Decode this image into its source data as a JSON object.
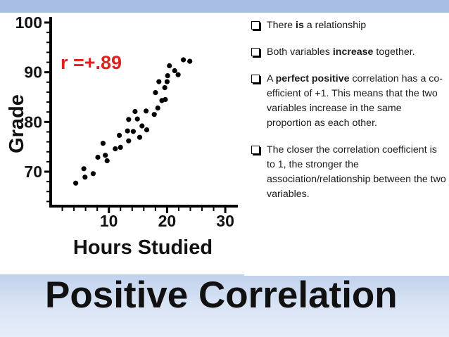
{
  "slide_title": "Positive Correlation",
  "colors": {
    "band": "#a8bfe3",
    "annotation": "#e02020"
  },
  "bullets": [
    {
      "parts": [
        {
          "text": "There ",
          "bold": false
        },
        {
          "text": "is",
          "bold": true
        },
        {
          "text": " a relationship",
          "bold": false
        }
      ]
    },
    {
      "parts": [
        {
          "text": "Both variables ",
          "bold": false
        },
        {
          "text": "increase",
          "bold": true
        },
        {
          "text": " together.",
          "bold": false
        }
      ]
    },
    {
      "parts": [
        {
          "text": "A ",
          "bold": false
        },
        {
          "text": "perfect positive",
          "bold": true
        },
        {
          "text": " correlation has a co-efficient of +1. This means that the two variables increase in the same proportion as each other.",
          "bold": false
        }
      ]
    },
    {
      "parts": [
        {
          "text": "The closer the correlation coefficient is to 1, the stronger the association/relationship between the two variables.",
          "bold": false
        }
      ]
    }
  ],
  "chart_data": {
    "type": "scatter",
    "title": "",
    "xlabel": "Hours Studied",
    "ylabel": "Grade",
    "annotation": "r =+.89",
    "xlim": [
      0,
      30
    ],
    "ylim": [
      63,
      100
    ],
    "xticks": [
      10,
      20,
      30
    ],
    "yticks": [
      70,
      80,
      90,
      100
    ],
    "grid": false,
    "series": [
      {
        "points": [
          [
            4.3,
            67.7
          ],
          [
            5.7,
            70.6
          ],
          [
            5.9,
            68.9
          ],
          [
            7.3,
            69.6
          ],
          [
            8.1,
            72.9
          ],
          [
            9.0,
            75.7
          ],
          [
            9.4,
            73.3
          ],
          [
            9.7,
            72.2
          ],
          [
            11.1,
            74.6
          ],
          [
            11.8,
            77.3
          ],
          [
            12.0,
            74.9
          ],
          [
            13.2,
            78.2
          ],
          [
            13.4,
            80.5
          ],
          [
            13.4,
            76.2
          ],
          [
            14.2,
            78.1
          ],
          [
            14.5,
            82.1
          ],
          [
            14.9,
            80.6
          ],
          [
            15.3,
            76.9
          ],
          [
            15.7,
            79.2
          ],
          [
            16.4,
            82.2
          ],
          [
            16.5,
            78.4
          ],
          [
            17.8,
            81.5
          ],
          [
            18.0,
            85.9
          ],
          [
            18.4,
            82.8
          ],
          [
            18.6,
            88.1
          ],
          [
            19.1,
            84.3
          ],
          [
            19.6,
            86.9
          ],
          [
            19.7,
            84.5
          ],
          [
            20.0,
            88.1
          ],
          [
            20.1,
            89.3
          ],
          [
            20.4,
            91.3
          ],
          [
            21.3,
            90.3
          ],
          [
            21.9,
            89.5
          ],
          [
            22.8,
            92.5
          ],
          [
            23.9,
            92.2
          ]
        ]
      }
    ]
  }
}
